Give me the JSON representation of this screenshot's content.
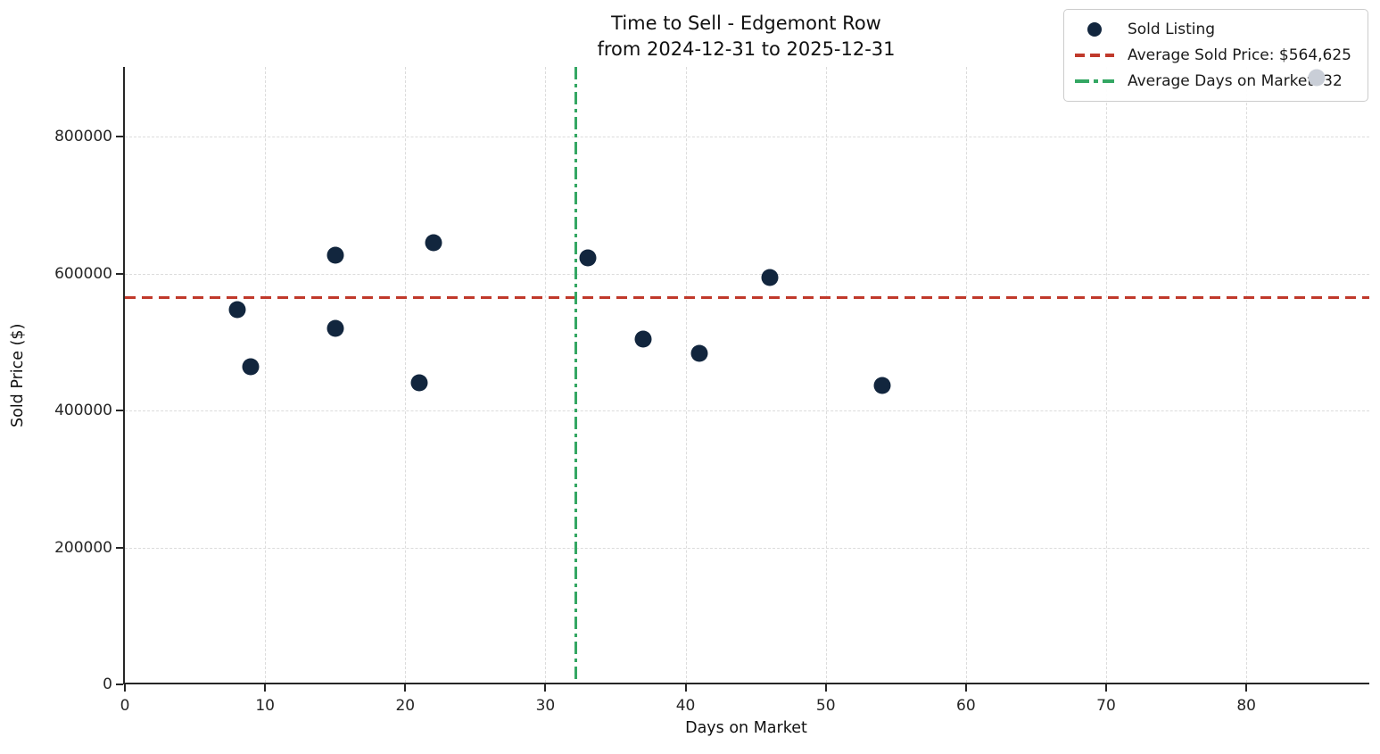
{
  "title": {
    "line1": "Time to Sell - Edgemont Row",
    "line2": "from 2024-12-31 to 2025-12-31"
  },
  "colors": {
    "point": "#12263e",
    "muted_point": "#c9ced7",
    "avg_price_line": "#c0392b",
    "avg_days_line": "#34a763",
    "grid": "#dcdcdc",
    "spine": "#262626",
    "legend_border": "#cccccc"
  },
  "legend": {
    "items": [
      {
        "label": "Sold Listing",
        "marker": "dot",
        "color": "#12263e"
      },
      {
        "label": "Average Sold Price: $564,625",
        "marker": "dashed-line",
        "color": "#c0392b"
      },
      {
        "label": "Average Days on Market: 32",
        "marker": "dashdot-line",
        "color": "#34a763"
      }
    ]
  },
  "chart_data": {
    "type": "scatter",
    "title": "Time to Sell - Edgemont Row from 2024-12-31 to 2025-12-31",
    "xlabel": "Days on Market",
    "ylabel": "Sold Price ($)",
    "xlim": [
      0,
      88.9
    ],
    "ylim": [
      0,
      902000
    ],
    "x_ticks": [
      0,
      10,
      20,
      30,
      40,
      50,
      60,
      70,
      80
    ],
    "y_ticks": [
      0,
      200000,
      400000,
      600000,
      800000
    ],
    "grid": true,
    "legend_position": "upper right",
    "series": [
      {
        "name": "Sold Listing",
        "color": "#12263e",
        "points": [
          {
            "x": 8,
            "y": 548000
          },
          {
            "x": 9,
            "y": 464000
          },
          {
            "x": 15,
            "y": 627000
          },
          {
            "x": 15,
            "y": 520000
          },
          {
            "x": 21,
            "y": 440000
          },
          {
            "x": 22,
            "y": 645000
          },
          {
            "x": 33,
            "y": 623500
          },
          {
            "x": 37,
            "y": 505000
          },
          {
            "x": 41,
            "y": 484000
          },
          {
            "x": 46,
            "y": 595000
          },
          {
            "x": 54,
            "y": 437000
          },
          {
            "x": 85,
            "y": 887000,
            "muted": true
          }
        ]
      }
    ],
    "reference_lines": [
      {
        "orientation": "horizontal",
        "value": 564625,
        "style": "dashed",
        "color": "#c0392b",
        "label": "Average Sold Price: $564,625"
      },
      {
        "orientation": "vertical",
        "value": 32.17,
        "style": "dashdot",
        "color": "#34a763",
        "label": "Average Days on Market: 32"
      }
    ]
  }
}
